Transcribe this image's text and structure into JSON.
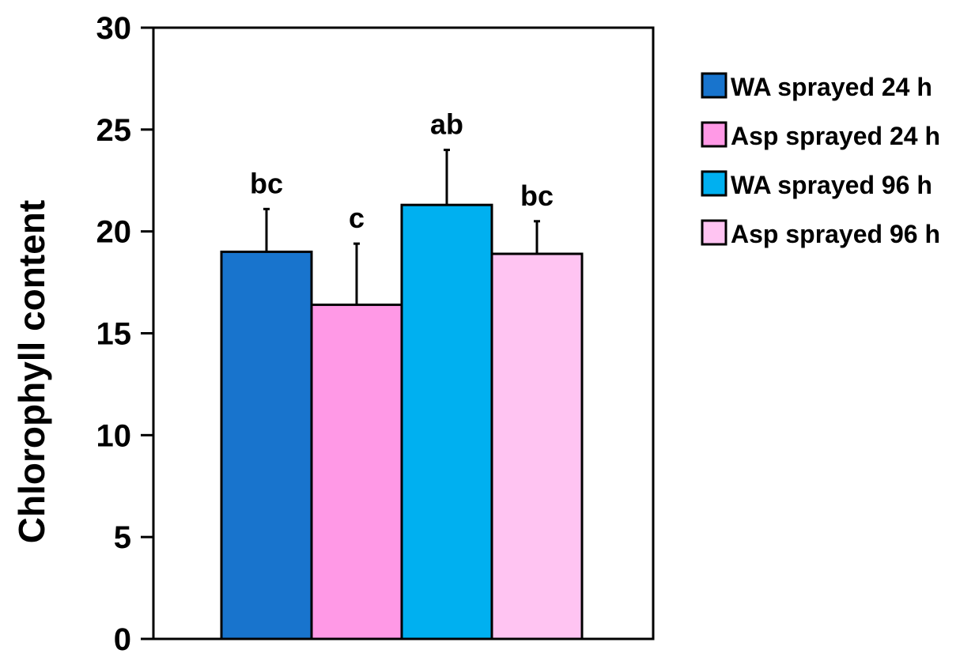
{
  "chart_data": {
    "type": "bar",
    "title": "",
    "xlabel": "",
    "ylabel": "Chlorophyll content",
    "ylim": [
      0,
      30
    ],
    "yticks": [
      0,
      5,
      10,
      15,
      20,
      25,
      30
    ],
    "grid": false,
    "legend_position": "right",
    "series": [
      {
        "name": "WA sprayed 24 h",
        "value": 19.0,
        "error": 2.1,
        "significance": "bc",
        "color": "#1874CD"
      },
      {
        "name": "Asp sprayed 24 h",
        "value": 16.4,
        "error": 3.0,
        "significance": "c",
        "color": "#FF99E6"
      },
      {
        "name": "WA sprayed 96 h",
        "value": 21.3,
        "error": 2.7,
        "significance": "ab",
        "color": "#00B0F0"
      },
      {
        "name": "Asp sprayed 96 h",
        "value": 18.9,
        "error": 1.6,
        "significance": "bc",
        "color": "#FFC4F2"
      }
    ]
  }
}
